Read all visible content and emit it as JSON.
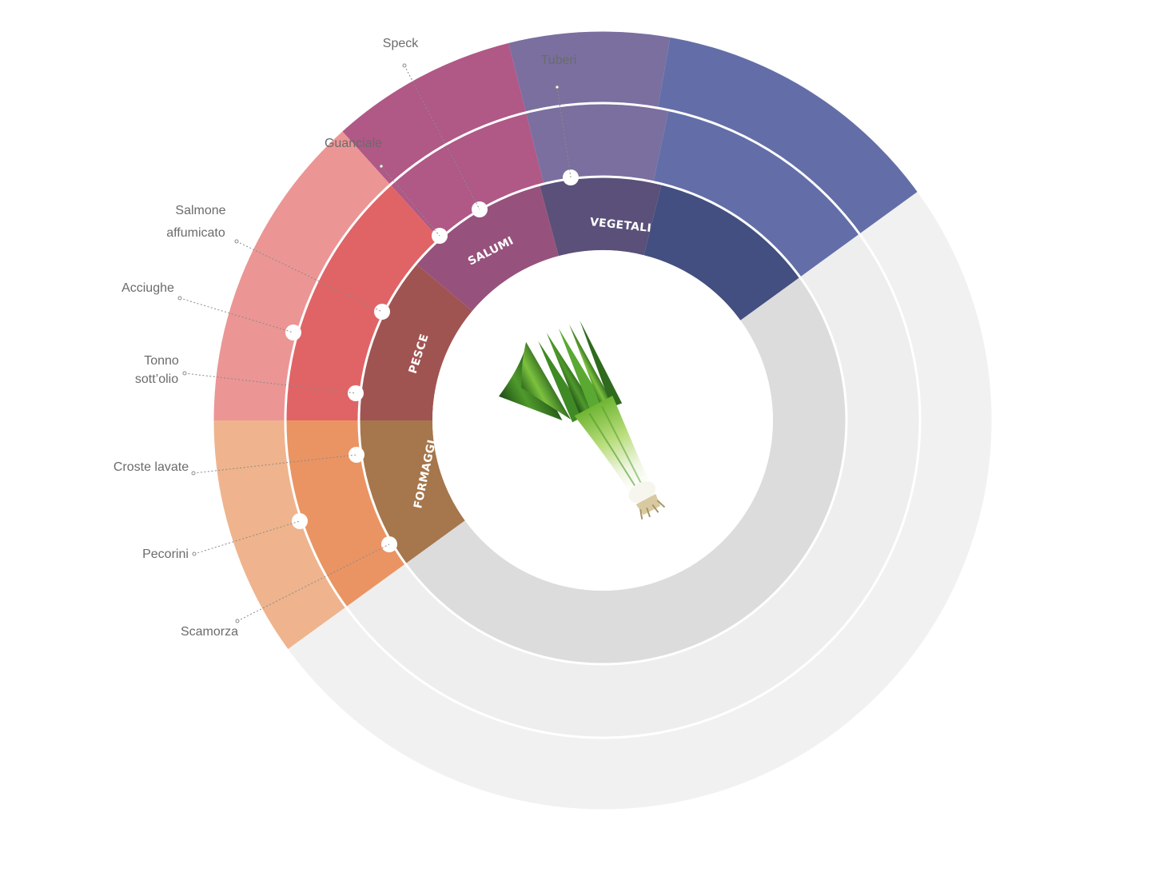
{
  "diagram": {
    "type": "pairing-wheel",
    "center_image": "leek",
    "categories": [
      {
        "name": "VEGETALI",
        "colors": {
          "inner": "#5a5079",
          "middle": "#7a6f9f",
          "outer": "#7a6f9f"
        },
        "items": [
          {
            "label": "Tuberi"
          }
        ]
      },
      {
        "name": "",
        "colors": {
          "inner": "#434f80",
          "middle": "#636ea8",
          "outer": "#636ea8"
        },
        "items": []
      },
      {
        "name": "SALUMI",
        "colors": {
          "inner": "#96527c",
          "middle": "#b05886",
          "outer": "#b05886"
        },
        "items": [
          {
            "label": "Speck"
          },
          {
            "label": "Guanciale"
          }
        ]
      },
      {
        "name": "PESCE",
        "colors": {
          "inner": "#a05452",
          "middle": "#e06466",
          "outer": "#ec9595"
        },
        "items": [
          {
            "label": "Salmone affumicato",
            "lines": [
              "Salmone",
              "affumicato"
            ]
          },
          {
            "label": "Acciughe"
          },
          {
            "label": "Tonno sott'olio",
            "lines": [
              "Tonno",
              "sott’olio"
            ]
          }
        ]
      },
      {
        "name": "FORMAGGI",
        "colors": {
          "inner": "#a6764c",
          "middle": "#ea9463",
          "outer": "#efb48d"
        },
        "items": [
          {
            "label": "Croste lavate"
          },
          {
            "label": "Pecorini"
          },
          {
            "label": "Scamorza"
          }
        ]
      }
    ],
    "empty_colors": {
      "inner": "#dcdcdc",
      "middle": "#eeeeee",
      "outer": "#f1f1f1"
    }
  }
}
